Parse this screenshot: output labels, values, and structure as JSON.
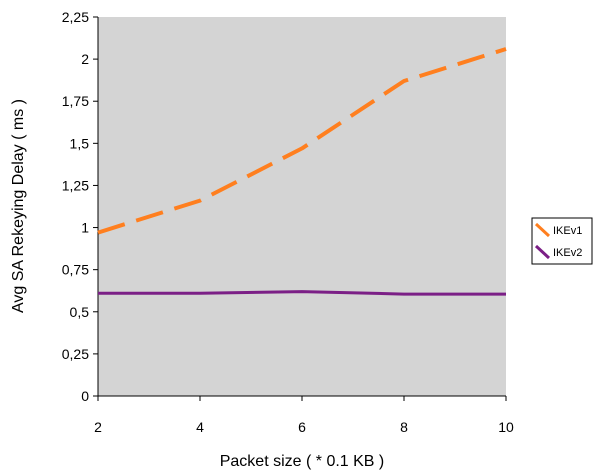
{
  "chart_data": {
    "type": "line",
    "title": "",
    "xlabel": "Packet size ( * 0.1 KB )",
    "ylabel": "Avg SA Rekeying Delay ( ms )",
    "x": [
      2,
      4,
      6,
      8,
      10
    ],
    "xlim": [
      2,
      10
    ],
    "ylim": [
      0,
      2.25
    ],
    "x_ticks": [
      "2",
      "4",
      "6",
      "8",
      "10"
    ],
    "y_ticks": [
      "0",
      "0,25",
      "0,5",
      "0,75",
      "1",
      "1,25",
      "1,5",
      "1,75",
      "2",
      "2,25"
    ],
    "grid": false,
    "plot_background": "#D4D4D4",
    "legend_position": "right",
    "series": [
      {
        "name": "IKEv1",
        "values": [
          0.97,
          1.16,
          1.47,
          1.87,
          2.06
        ],
        "color": "#FF7F1F",
        "style": "dashed"
      },
      {
        "name": "IKEv2",
        "values": [
          0.61,
          0.61,
          0.62,
          0.605,
          0.605
        ],
        "color": "#7B1F86",
        "style": "solid"
      }
    ]
  }
}
